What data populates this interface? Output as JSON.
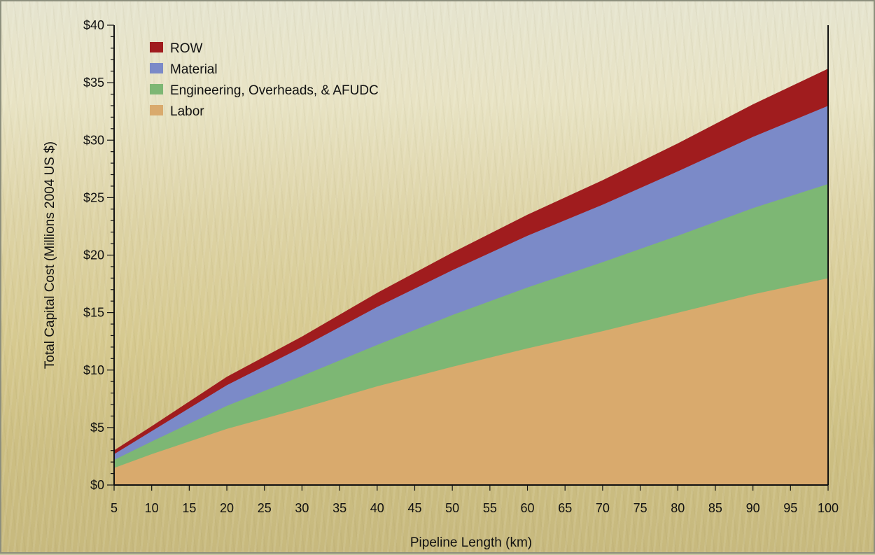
{
  "chart_data": {
    "type": "area",
    "stacked": true,
    "xlabel": "Pipeline Length (km)",
    "ylabel": "Total Capital Cost (Millions 2004 US $)",
    "xlim": [
      5,
      100
    ],
    "ylim": [
      0,
      40
    ],
    "xticks": [
      "5",
      "10",
      "15",
      "20",
      "25",
      "30",
      "35",
      "40",
      "45",
      "50",
      "55",
      "60",
      "65",
      "70",
      "75",
      "80",
      "85",
      "90",
      "95",
      "100"
    ],
    "yticks": [
      "$0",
      "$5",
      "$10",
      "$15",
      "$20",
      "$25",
      "$30",
      "$35",
      "$40"
    ],
    "grid": false,
    "legend_position": "top-left",
    "x": [
      5,
      10,
      20,
      30,
      40,
      50,
      60,
      70,
      80,
      90,
      100
    ],
    "series": [
      {
        "name": "Labor",
        "color": "#d9aa6d",
        "values": [
          1.5,
          2.7,
          4.9,
          6.7,
          8.6,
          10.3,
          11.9,
          13.4,
          15.0,
          16.6,
          18.0
        ]
      },
      {
        "name": "Engineering, Overheads, & AFUDC",
        "color": "#7db774",
        "values": [
          0.7,
          1.1,
          2.0,
          2.8,
          3.6,
          4.5,
          5.3,
          6.0,
          6.7,
          7.5,
          8.2
        ]
      },
      {
        "name": "Material",
        "color": "#7b8ac8",
        "values": [
          0.5,
          0.9,
          1.8,
          2.5,
          3.3,
          3.9,
          4.5,
          5.0,
          5.6,
          6.2,
          6.8
        ]
      },
      {
        "name": "ROW",
        "color": "#a01c1e",
        "values": [
          0.3,
          0.4,
          0.7,
          0.9,
          1.2,
          1.5,
          1.8,
          2.1,
          2.4,
          2.8,
          3.2
        ]
      }
    ],
    "legend_order": [
      "ROW",
      "Material",
      "Engineering, Overheads, & AFUDC",
      "Labor"
    ]
  }
}
